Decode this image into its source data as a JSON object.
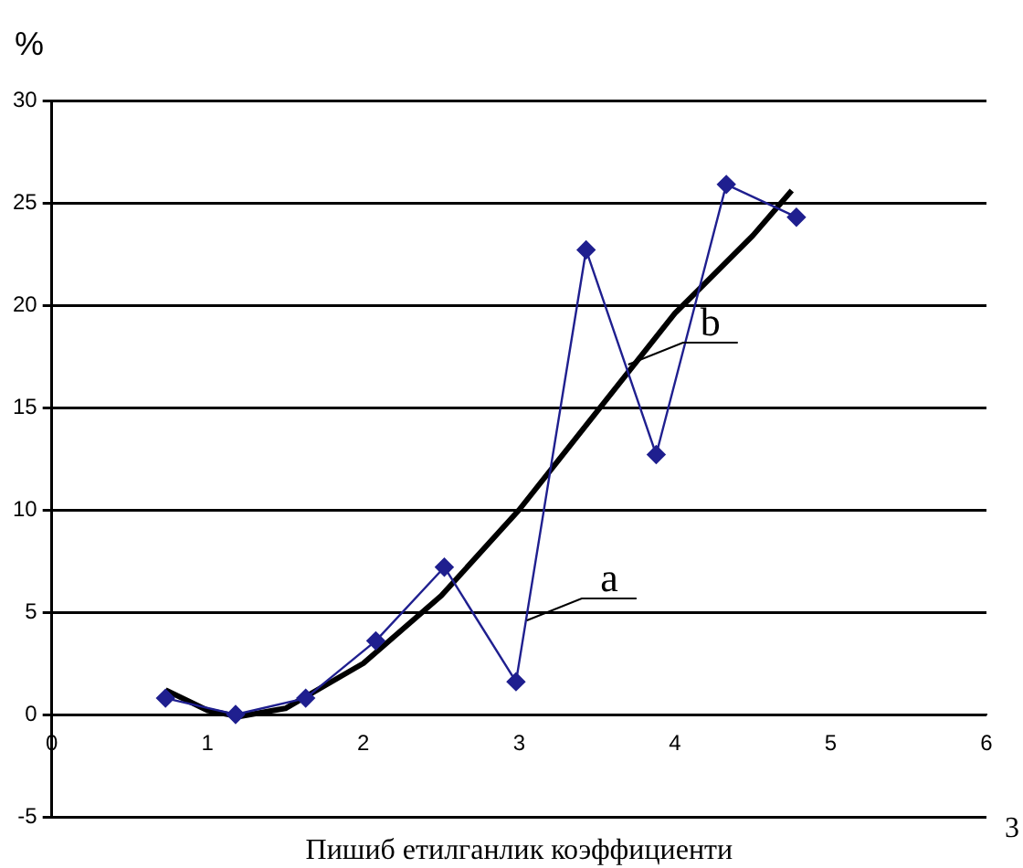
{
  "chart_data": {
    "type": "line",
    "ylabel": "%",
    "xlabel": "Пишиб етилганлик коэффициенти",
    "xlim": [
      0,
      6
    ],
    "xticks": [
      0,
      1,
      2,
      3,
      4,
      5,
      6
    ],
    "ylim": [
      -5,
      30
    ],
    "yticks": [
      -5,
      0,
      5,
      10,
      15,
      20,
      25,
      30
    ],
    "grid": "y",
    "legend": false,
    "series": [
      {
        "color": "#1f1f8f",
        "marker": "diamond",
        "x": [
          0.73,
          1.18,
          1.63,
          2.08,
          2.52,
          2.98,
          3.43,
          3.88,
          4.33,
          4.78
        ],
        "values": [
          0.8,
          0.0,
          0.8,
          3.6,
          7.2,
          1.6,
          22.7,
          12.7,
          25.9,
          24.3
        ]
      },
      {
        "color": "#000000",
        "marker": "none",
        "x": [
          0.73,
          1.0,
          1.2,
          1.5,
          2.0,
          2.5,
          3.0,
          3.5,
          4.0,
          4.5,
          4.75
        ],
        "values": [
          1.2,
          0.2,
          -0.1,
          0.3,
          2.5,
          5.8,
          10.0,
          14.8,
          19.6,
          23.4,
          25.6
        ]
      }
    ],
    "annotations": [
      {
        "text": "a",
        "x": 3.05,
        "y": 4.6
      },
      {
        "text": "b",
        "x": 3.7,
        "y": 17.1
      },
      "3"
    ]
  }
}
